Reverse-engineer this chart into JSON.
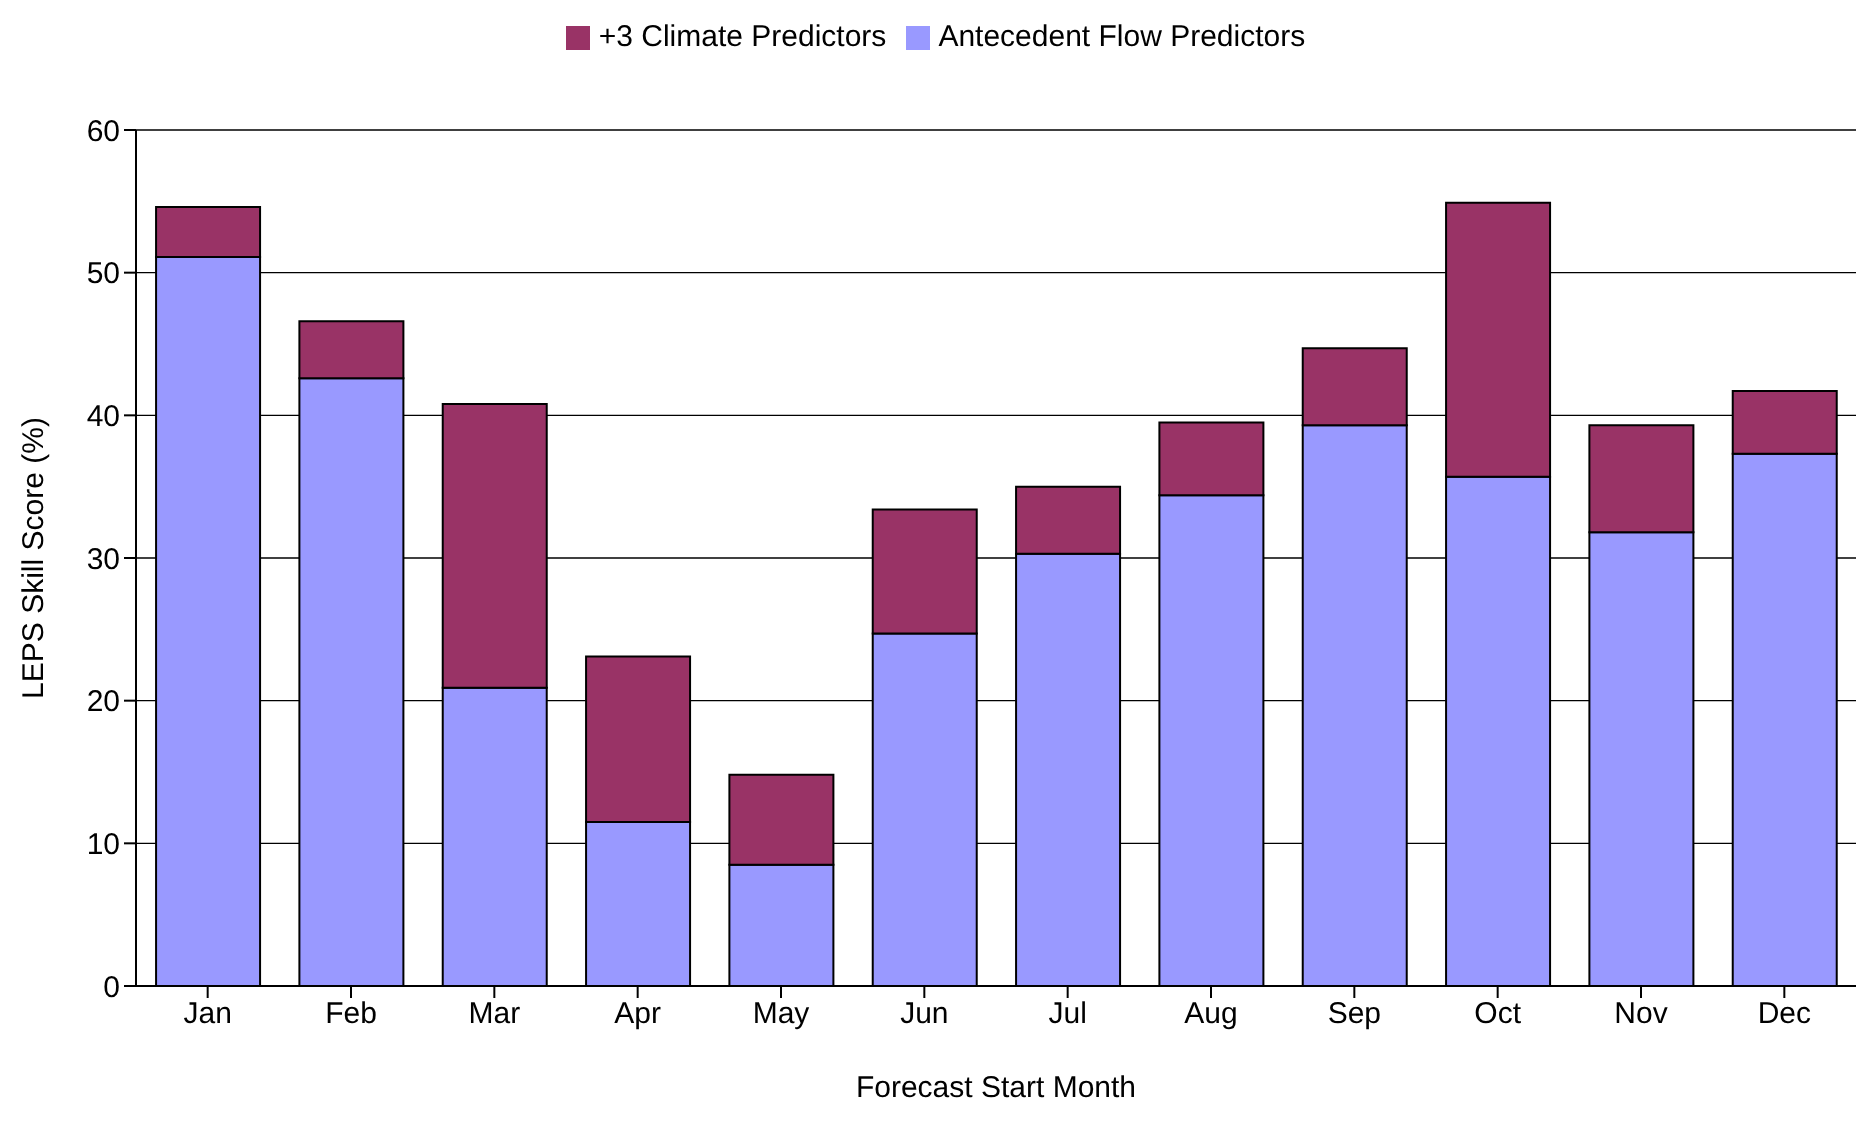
{
  "chart_data": {
    "type": "bar",
    "stacked": true,
    "xlabel": "Forecast Start Month",
    "ylabel": "LEPS Skill Score (%)",
    "categories": [
      "Jan",
      "Feb",
      "Mar",
      "Apr",
      "May",
      "Jun",
      "Jul",
      "Aug",
      "Sep",
      "Oct",
      "Nov",
      "Dec"
    ],
    "series": [
      {
        "name": "Antecedent Flow Predictors",
        "color": "#9999ff",
        "values": [
          51.1,
          42.6,
          20.9,
          11.5,
          8.5,
          24.7,
          30.3,
          34.4,
          39.3,
          35.7,
          31.8,
          37.3
        ]
      },
      {
        "name": "+3 Climate Predictors",
        "color": "#993366",
        "values": [
          3.5,
          4.0,
          19.9,
          11.6,
          6.3,
          8.7,
          4.7,
          5.1,
          5.4,
          19.2,
          7.5,
          4.4
        ]
      }
    ],
    "ylim": [
      0,
      60
    ],
    "yticks": [
      0,
      10,
      20,
      30,
      40,
      50,
      60
    ],
    "grid": "y",
    "legend": "top"
  }
}
